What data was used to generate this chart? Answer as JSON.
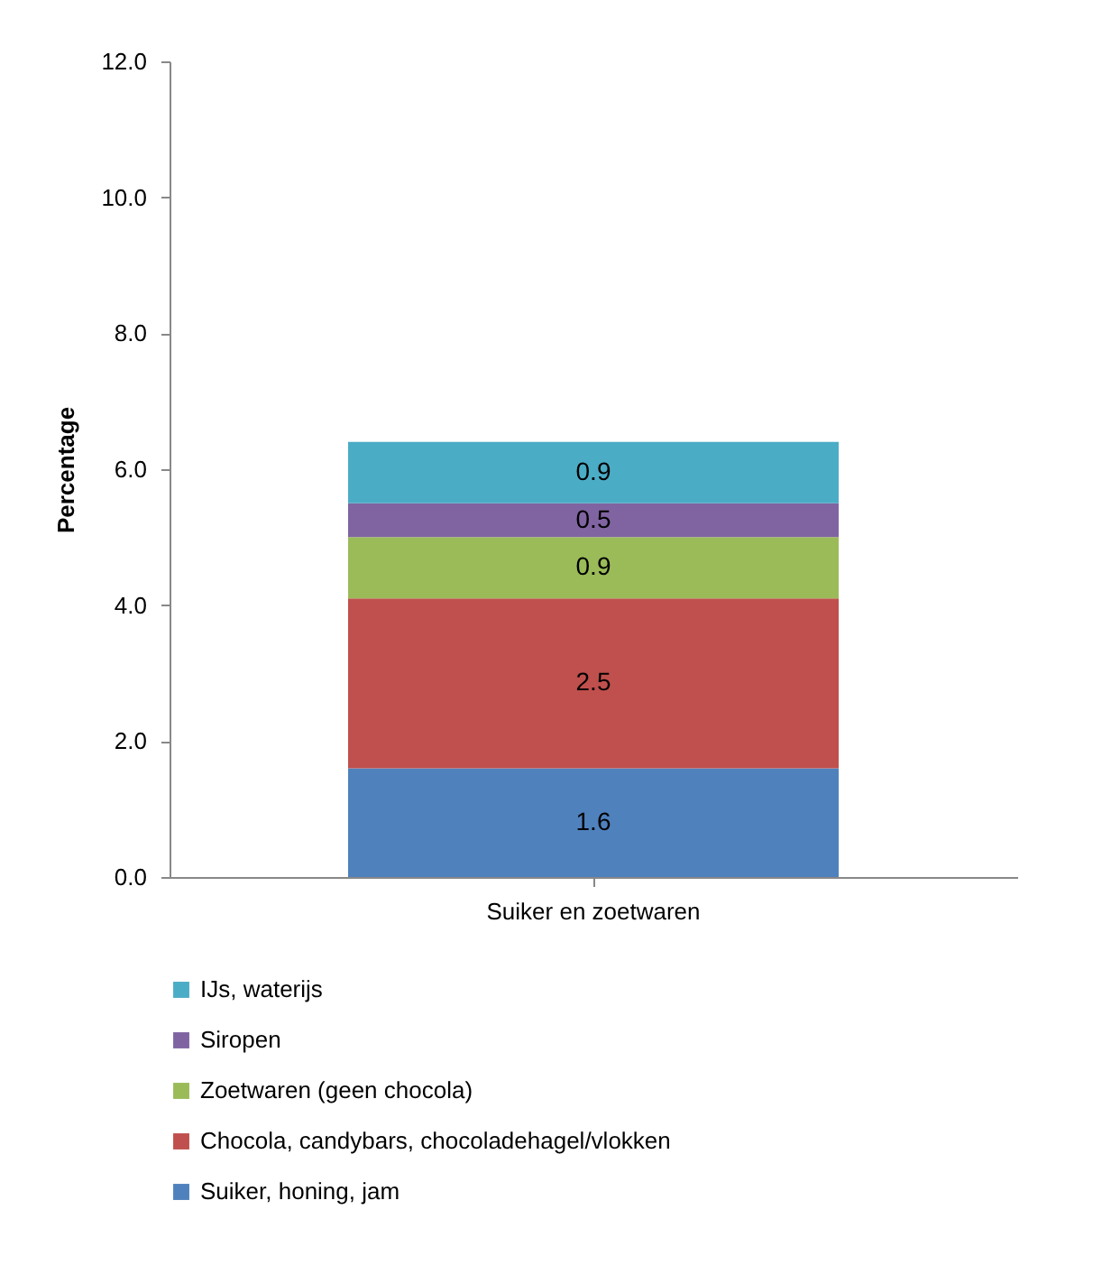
{
  "chart_data": {
    "type": "bar",
    "stacked": true,
    "ylabel": "Percentage",
    "categories": [
      "Suiker en zoetwaren"
    ],
    "series": [
      {
        "name": "Suiker, honing, jam",
        "color": "#4f81bd",
        "values": [
          1.6
        ]
      },
      {
        "name": "Chocola, candybars, chocoladehagel/vlokken",
        "color": "#c0504d",
        "values": [
          2.5
        ]
      },
      {
        "name": "Zoetwaren (geen chocola)",
        "color": "#9bbb59",
        "values": [
          0.9
        ]
      },
      {
        "name": "Siropen",
        "color": "#8064a2",
        "values": [
          0.5
        ]
      },
      {
        "name": "IJs, waterijs",
        "color": "#4bacc6",
        "values": [
          0.9
        ]
      }
    ],
    "ylim": [
      0,
      12
    ],
    "yticks": [
      {
        "value": 0,
        "label": "0.0"
      },
      {
        "value": 2,
        "label": "2.0"
      },
      {
        "value": 4,
        "label": "4.0"
      },
      {
        "value": 6,
        "label": "6.0"
      },
      {
        "value": 8,
        "label": "8.0"
      },
      {
        "value": 10,
        "label": "10.0"
      },
      {
        "value": 12,
        "label": "12.0"
      }
    ],
    "data_labels": true,
    "legend": "bottom",
    "grid": false
  }
}
